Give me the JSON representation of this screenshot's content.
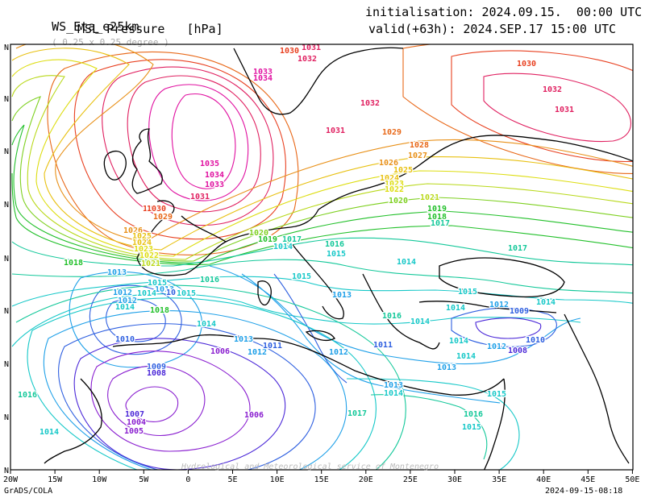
{
  "header": {
    "model": "WS_Eta_e25km",
    "resolution": "( 0.25 x 0.25 degree )",
    "field": "MSL Pressure   [hPa]",
    "init_label": "initialisation:",
    "init_value": "2024.09.15.  00:00 UTC",
    "valid_label": "valid(+63h):",
    "valid_value": "2024.SEP.17 15:00 UTC"
  },
  "axes": {
    "x_ticks": [
      "20W",
      "15W",
      "10W",
      "5W",
      "0",
      "5E",
      "10E",
      "15E",
      "20E",
      "25E",
      "30E",
      "35E",
      "40E",
      "45E",
      "50E"
    ],
    "y_ticks": [
      "N",
      "N",
      "N",
      "N",
      "N",
      "N",
      "N",
      "N",
      "N",
      "N"
    ]
  },
  "footer": {
    "left": "GrADS/COLA",
    "right": "2024-09-15-08:18",
    "watermark": "Hydrological and Meteorological service of Montenegro"
  },
  "colors": {
    "c1006": "#8a1fd0",
    "c1008": "#4b28d8",
    "c1010": "#2e5fe0",
    "c1012": "#1fa0e8",
    "c1014": "#17c8c8",
    "c1016": "#14c89a",
    "c1018": "#22c02a",
    "c1020": "#7ed020",
    "c1022": "#dddd10",
    "c1024": "#e8c010",
    "c1026": "#e89018",
    "c1028": "#e86818",
    "c1030": "#e84020",
    "c1032": "#e02060",
    "c1034": "#e010a0",
    "coast": "#000000"
  },
  "contour_labels": [
    {
      "text": "1031",
      "color": "#e02060"
    },
    {
      "text": "1032",
      "color": "#e02060"
    },
    {
      "text": "1030",
      "color": "#e84020"
    },
    {
      "text": "1033",
      "color": "#e010a0"
    },
    {
      "text": "1034",
      "color": "#e010a0"
    },
    {
      "text": "1035",
      "color": "#e010a0"
    },
    {
      "text": "1034",
      "color": "#e010a0"
    },
    {
      "text": "1033",
      "color": "#e010a0"
    },
    {
      "text": "1031",
      "color": "#e02060"
    },
    {
      "text": "1030",
      "color": "#e84020"
    },
    {
      "text": "1031",
      "color": "#e02060"
    },
    {
      "text": "1032",
      "color": "#e02060"
    },
    {
      "text": "1031",
      "color": "#e02060"
    },
    {
      "text": "1032",
      "color": "#e02060"
    },
    {
      "text": "1030",
      "color": "#e84020"
    },
    {
      "text": "1029",
      "color": "#e86818"
    },
    {
      "text": "1028",
      "color": "#e86818"
    },
    {
      "text": "1027",
      "color": "#e89018"
    },
    {
      "text": "1026",
      "color": "#e89018"
    },
    {
      "text": "1025",
      "color": "#e8c010"
    },
    {
      "text": "1024",
      "color": "#e8c010"
    },
    {
      "text": "1023",
      "color": "#dddd10"
    },
    {
      "text": "1022",
      "color": "#dddd10"
    },
    {
      "text": "1021",
      "color": "#b8d818"
    },
    {
      "text": "1020",
      "color": "#7ed020"
    },
    {
      "text": "1019",
      "color": "#22c02a"
    },
    {
      "text": "1018",
      "color": "#22c02a"
    },
    {
      "text": "1017",
      "color": "#14c89a"
    },
    {
      "text": "1030",
      "color": "#e84020"
    },
    {
      "text": "1029",
      "color": "#e86818"
    },
    {
      "text": "1026",
      "color": "#e89018"
    },
    {
      "text": "1025",
      "color": "#e8c010"
    },
    {
      "text": "1024",
      "color": "#e8c010"
    },
    {
      "text": "1023",
      "color": "#dddd10"
    },
    {
      "text": "1022",
      "color": "#dddd10"
    },
    {
      "text": "1021",
      "color": "#b8d818"
    },
    {
      "text": "1018",
      "color": "#22c02a"
    },
    {
      "text": "1020",
      "color": "#7ed020"
    },
    {
      "text": "1019",
      "color": "#22c02a"
    },
    {
      "text": "1017",
      "color": "#14c89a"
    },
    {
      "text": "1016",
      "color": "#14c89a"
    },
    {
      "text": "1014",
      "color": "#17c8c8"
    },
    {
      "text": "1015",
      "color": "#17c8c8"
    },
    {
      "text": "1014",
      "color": "#17c8c8"
    },
    {
      "text": "1015",
      "color": "#17c8c8"
    },
    {
      "text": "1017",
      "color": "#14c89a"
    },
    {
      "text": "1016",
      "color": "#14c89a"
    },
    {
      "text": "1013",
      "color": "#1fa0e8"
    },
    {
      "text": "1012",
      "color": "#1fa0e8"
    },
    {
      "text": "1011",
      "color": "#2e5fe0"
    },
    {
      "text": "1014",
      "color": "#17c8c8"
    },
    {
      "text": "1010",
      "color": "#2e5fe0"
    },
    {
      "text": "1009",
      "color": "#2e5fe0"
    },
    {
      "text": "1008",
      "color": "#4b28d8"
    },
    {
      "text": "1007",
      "color": "#4b28d8"
    },
    {
      "text": "1004",
      "color": "#8a1fd0"
    },
    {
      "text": "1005",
      "color": "#8a1fd0"
    },
    {
      "text": "1006",
      "color": "#8a1fd0"
    },
    {
      "text": "1006",
      "color": "#8a1fd0"
    },
    {
      "text": "1012",
      "color": "#1fa0e8"
    },
    {
      "text": "1011",
      "color": "#2e5fe0"
    },
    {
      "text": "1013",
      "color": "#1fa0e8"
    },
    {
      "text": "1014",
      "color": "#17c8c8"
    },
    {
      "text": "1015",
      "color": "#17c8c8"
    },
    {
      "text": "1013",
      "color": "#1fa0e8"
    },
    {
      "text": "1012",
      "color": "#1fa0e8"
    },
    {
      "text": "1011",
      "color": "#2e5fe0"
    },
    {
      "text": "1014",
      "color": "#17c8c8"
    },
    {
      "text": "1013",
      "color": "#1fa0e8"
    },
    {
      "text": "1012",
      "color": "#1fa0e8"
    },
    {
      "text": "1009",
      "color": "#2e5fe0"
    },
    {
      "text": "1010",
      "color": "#2e5fe0"
    },
    {
      "text": "1008",
      "color": "#4b28d8"
    },
    {
      "text": "1013",
      "color": "#1fa0e8"
    },
    {
      "text": "1014",
      "color": "#17c8c8"
    },
    {
      "text": "1015",
      "color": "#17c8c8"
    },
    {
      "text": "1016",
      "color": "#14c89a"
    },
    {
      "text": "1015",
      "color": "#17c8c8"
    },
    {
      "text": "1014",
      "color": "#17c8c8"
    },
    {
      "text": "1014",
      "color": "#17c8c8"
    },
    {
      "text": "1012",
      "color": "#1fa0e8"
    },
    {
      "text": "1014",
      "color": "#17c8c8"
    },
    {
      "text": "1016",
      "color": "#14c89a"
    },
    {
      "text": "1014",
      "color": "#17c8c8"
    },
    {
      "text": "1013",
      "color": "#1fa0e8"
    },
    {
      "text": "1012",
      "color": "#1fa0e8"
    },
    {
      "text": "1015",
      "color": "#17c8c8"
    },
    {
      "text": "1018",
      "color": "#22c02a"
    },
    {
      "text": "1015",
      "color": "#17c8c8"
    },
    {
      "text": "1014",
      "color": "#17c8c8"
    },
    {
      "text": "1017",
      "color": "#14c89a"
    },
    {
      "text": "1016",
      "color": "#14c89a"
    },
    {
      "text": "1014",
      "color": "#17c8c8"
    },
    {
      "text": "1013",
      "color": "#1fa0e8"
    },
    {
      "text": "1012",
      "color": "#1fa0e8"
    }
  ]
}
